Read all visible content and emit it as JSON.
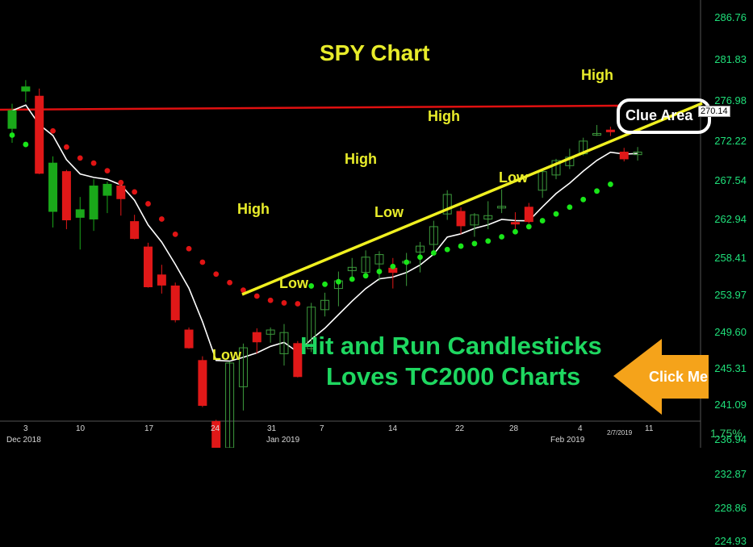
{
  "chart_data": {
    "type": "candlestick",
    "title": "SPY Chart",
    "price_axis_ticks": [
      286.76,
      281.83,
      276.98,
      272.22,
      267.54,
      262.94,
      258.41,
      253.97,
      249.6,
      245.31,
      241.09,
      236.94,
      232.87,
      228.86,
      224.93
    ],
    "last_price": "270.14",
    "date_ticks": [
      "3",
      "10",
      "17",
      "24",
      "31",
      "7",
      "14",
      "22",
      "28",
      "4",
      "11"
    ],
    "month_labels": [
      "Dec 2018",
      "Jan 2019",
      "Feb 2019"
    ],
    "cursor_date": "2/7/2019",
    "percent_readout": "1.75%",
    "candles": [
      {
        "o": 273.7,
        "h": 276.6,
        "l": 272.0,
        "c": 275.8,
        "color": "green"
      },
      {
        "o": 278.6,
        "h": 279.4,
        "l": 276.8,
        "c": 278.1,
        "color": "green"
      },
      {
        "o": 277.5,
        "h": 278.4,
        "l": 268.3,
        "c": 268.4,
        "color": "red"
      },
      {
        "o": 263.9,
        "h": 270.4,
        "l": 262.0,
        "c": 269.6,
        "color": "green"
      },
      {
        "o": 268.6,
        "h": 268.8,
        "l": 261.8,
        "c": 262.9,
        "color": "red"
      },
      {
        "o": 263.2,
        "h": 265.6,
        "l": 259.4,
        "c": 264.1,
        "color": "green"
      },
      {
        "o": 263.0,
        "h": 267.7,
        "l": 261.6,
        "c": 266.9,
        "color": "green"
      },
      {
        "o": 265.8,
        "h": 267.4,
        "l": 263.7,
        "c": 267.1,
        "color": "green"
      },
      {
        "o": 266.9,
        "h": 267.5,
        "l": 263.4,
        "c": 265.4,
        "color": "red"
      },
      {
        "o": 262.7,
        "h": 263.5,
        "l": 260.6,
        "c": 260.7,
        "color": "red"
      },
      {
        "o": 259.7,
        "h": 260.2,
        "l": 254.9,
        "c": 255.0,
        "color": "red"
      },
      {
        "o": 256.4,
        "h": 257.6,
        "l": 254.2,
        "c": 255.2,
        "color": "red"
      },
      {
        "o": 255.1,
        "h": 255.5,
        "l": 250.8,
        "c": 251.1,
        "color": "red"
      },
      {
        "o": 249.9,
        "h": 250.2,
        "l": 247.7,
        "c": 247.8,
        "color": "red"
      },
      {
        "o": 246.3,
        "h": 246.8,
        "l": 240.8,
        "c": 241.0,
        "color": "red"
      },
      {
        "o": 239.1,
        "h": 239.3,
        "l": 234.3,
        "c": 234.9,
        "color": "red"
      },
      {
        "o": 236.0,
        "h": 246.2,
        "l": 233.6,
        "c": 246.0,
        "color": "green"
      },
      {
        "o": 243.2,
        "h": 248.3,
        "l": 240.4,
        "c": 247.8,
        "color": "green"
      },
      {
        "o": 249.6,
        "h": 250.1,
        "l": 247.1,
        "c": 248.5,
        "color": "red"
      },
      {
        "o": 249.4,
        "h": 250.2,
        "l": 248.4,
        "c": 249.9,
        "color": "green"
      },
      {
        "o": 247.1,
        "h": 250.6,
        "l": 245.7,
        "c": 249.6,
        "color": "green"
      },
      {
        "o": 248.3,
        "h": 248.6,
        "l": 244.3,
        "c": 244.4,
        "color": "red"
      },
      {
        "o": 247.7,
        "h": 253.1,
        "l": 247.3,
        "c": 252.6,
        "color": "green"
      },
      {
        "o": 252.3,
        "h": 254.3,
        "l": 251.5,
        "c": 253.4,
        "color": "green"
      },
      {
        "o": 254.8,
        "h": 256.8,
        "l": 252.7,
        "c": 255.7,
        "color": "green"
      },
      {
        "o": 256.9,
        "h": 258.4,
        "l": 255.7,
        "c": 257.3,
        "color": "green"
      },
      {
        "o": 256.7,
        "h": 259.3,
        "l": 256.0,
        "c": 258.5,
        "color": "green"
      },
      {
        "o": 257.7,
        "h": 259.2,
        "l": 255.7,
        "c": 258.8,
        "color": "green"
      },
      {
        "o": 257.2,
        "h": 258.4,
        "l": 254.8,
        "c": 256.7,
        "color": "red"
      },
      {
        "o": 258.0,
        "h": 259.0,
        "l": 255.1,
        "c": 258.0,
        "color": "green"
      },
      {
        "o": 259.1,
        "h": 260.3,
        "l": 256.7,
        "c": 259.8,
        "color": "green"
      },
      {
        "o": 260.0,
        "h": 262.8,
        "l": 258.9,
        "c": 262.1,
        "color": "green"
      },
      {
        "o": 263.6,
        "h": 266.4,
        "l": 262.9,
        "c": 265.9,
        "color": "green"
      },
      {
        "o": 263.9,
        "h": 264.4,
        "l": 261.2,
        "c": 262.2,
        "color": "red"
      },
      {
        "o": 262.3,
        "h": 263.7,
        "l": 260.9,
        "c": 263.5,
        "color": "green"
      },
      {
        "o": 263.0,
        "h": 265.1,
        "l": 261.8,
        "c": 263.4,
        "color": "green"
      },
      {
        "o": 264.3,
        "h": 266.5,
        "l": 263.7,
        "c": 264.5,
        "color": "green"
      },
      {
        "o": 262.6,
        "h": 263.8,
        "l": 261.6,
        "c": 262.5,
        "color": "red"
      },
      {
        "o": 264.4,
        "h": 264.9,
        "l": 262.5,
        "c": 262.7,
        "color": "red"
      },
      {
        "o": 266.4,
        "h": 268.8,
        "l": 265.5,
        "c": 268.6,
        "color": "green"
      },
      {
        "o": 268.2,
        "h": 270.1,
        "l": 267.7,
        "c": 269.9,
        "color": "green"
      },
      {
        "o": 269.3,
        "h": 271.3,
        "l": 268.9,
        "c": 270.3,
        "color": "green"
      },
      {
        "o": 270.7,
        "h": 272.6,
        "l": 270.5,
        "c": 272.2,
        "color": "green"
      },
      {
        "o": 272.9,
        "h": 274.1,
        "l": 272.8,
        "c": 273.1,
        "color": "green"
      },
      {
        "o": 273.5,
        "h": 273.9,
        "l": 272.8,
        "c": 273.3,
        "color": "red"
      },
      {
        "o": 270.9,
        "h": 271.4,
        "l": 269.8,
        "c": 270.1,
        "color": "red"
      },
      {
        "o": 270.6,
        "h": 271.5,
        "l": 269.9,
        "c": 270.9,
        "color": "green"
      }
    ],
    "psar_red": [
      273.4,
      271.5,
      270.2,
      269.6,
      268.7,
      267.3,
      266.2,
      264.8,
      263.0,
      261.2,
      259.5,
      257.9,
      256.5,
      255.5,
      254.6,
      253.9,
      253.4,
      253.1,
      253.0
    ],
    "psar_green": [
      272.9,
      271.8,
      255.1,
      255.3,
      255.6,
      255.9,
      256.3,
      256.8,
      257.4,
      257.9,
      258.5,
      259.0,
      259.4,
      259.8,
      260.1,
      260.4,
      260.9,
      261.5,
      262.1,
      262.8,
      263.6,
      264.4,
      265.3,
      266.3,
      267.1
    ],
    "ma_200": 276.0,
    "annotations": {
      "high_labels": [
        "High",
        "High",
        "High",
        "High"
      ],
      "low_labels": [
        "Low",
        "Low",
        "Low",
        "Low"
      ],
      "clue": "Clue Area"
    }
  },
  "promo": {
    "line1": "Hit and Run Candlesticks",
    "line2": "Loves TC2000 Charts",
    "cta": "Click Me"
  },
  "colors": {
    "up": "#1aa81a",
    "down": "#e01818",
    "ma": "#e01010",
    "psar_up": "#19e619",
    "psar_down": "#e01414",
    "trend": "#f0f020",
    "cta": "#f5a31a"
  }
}
